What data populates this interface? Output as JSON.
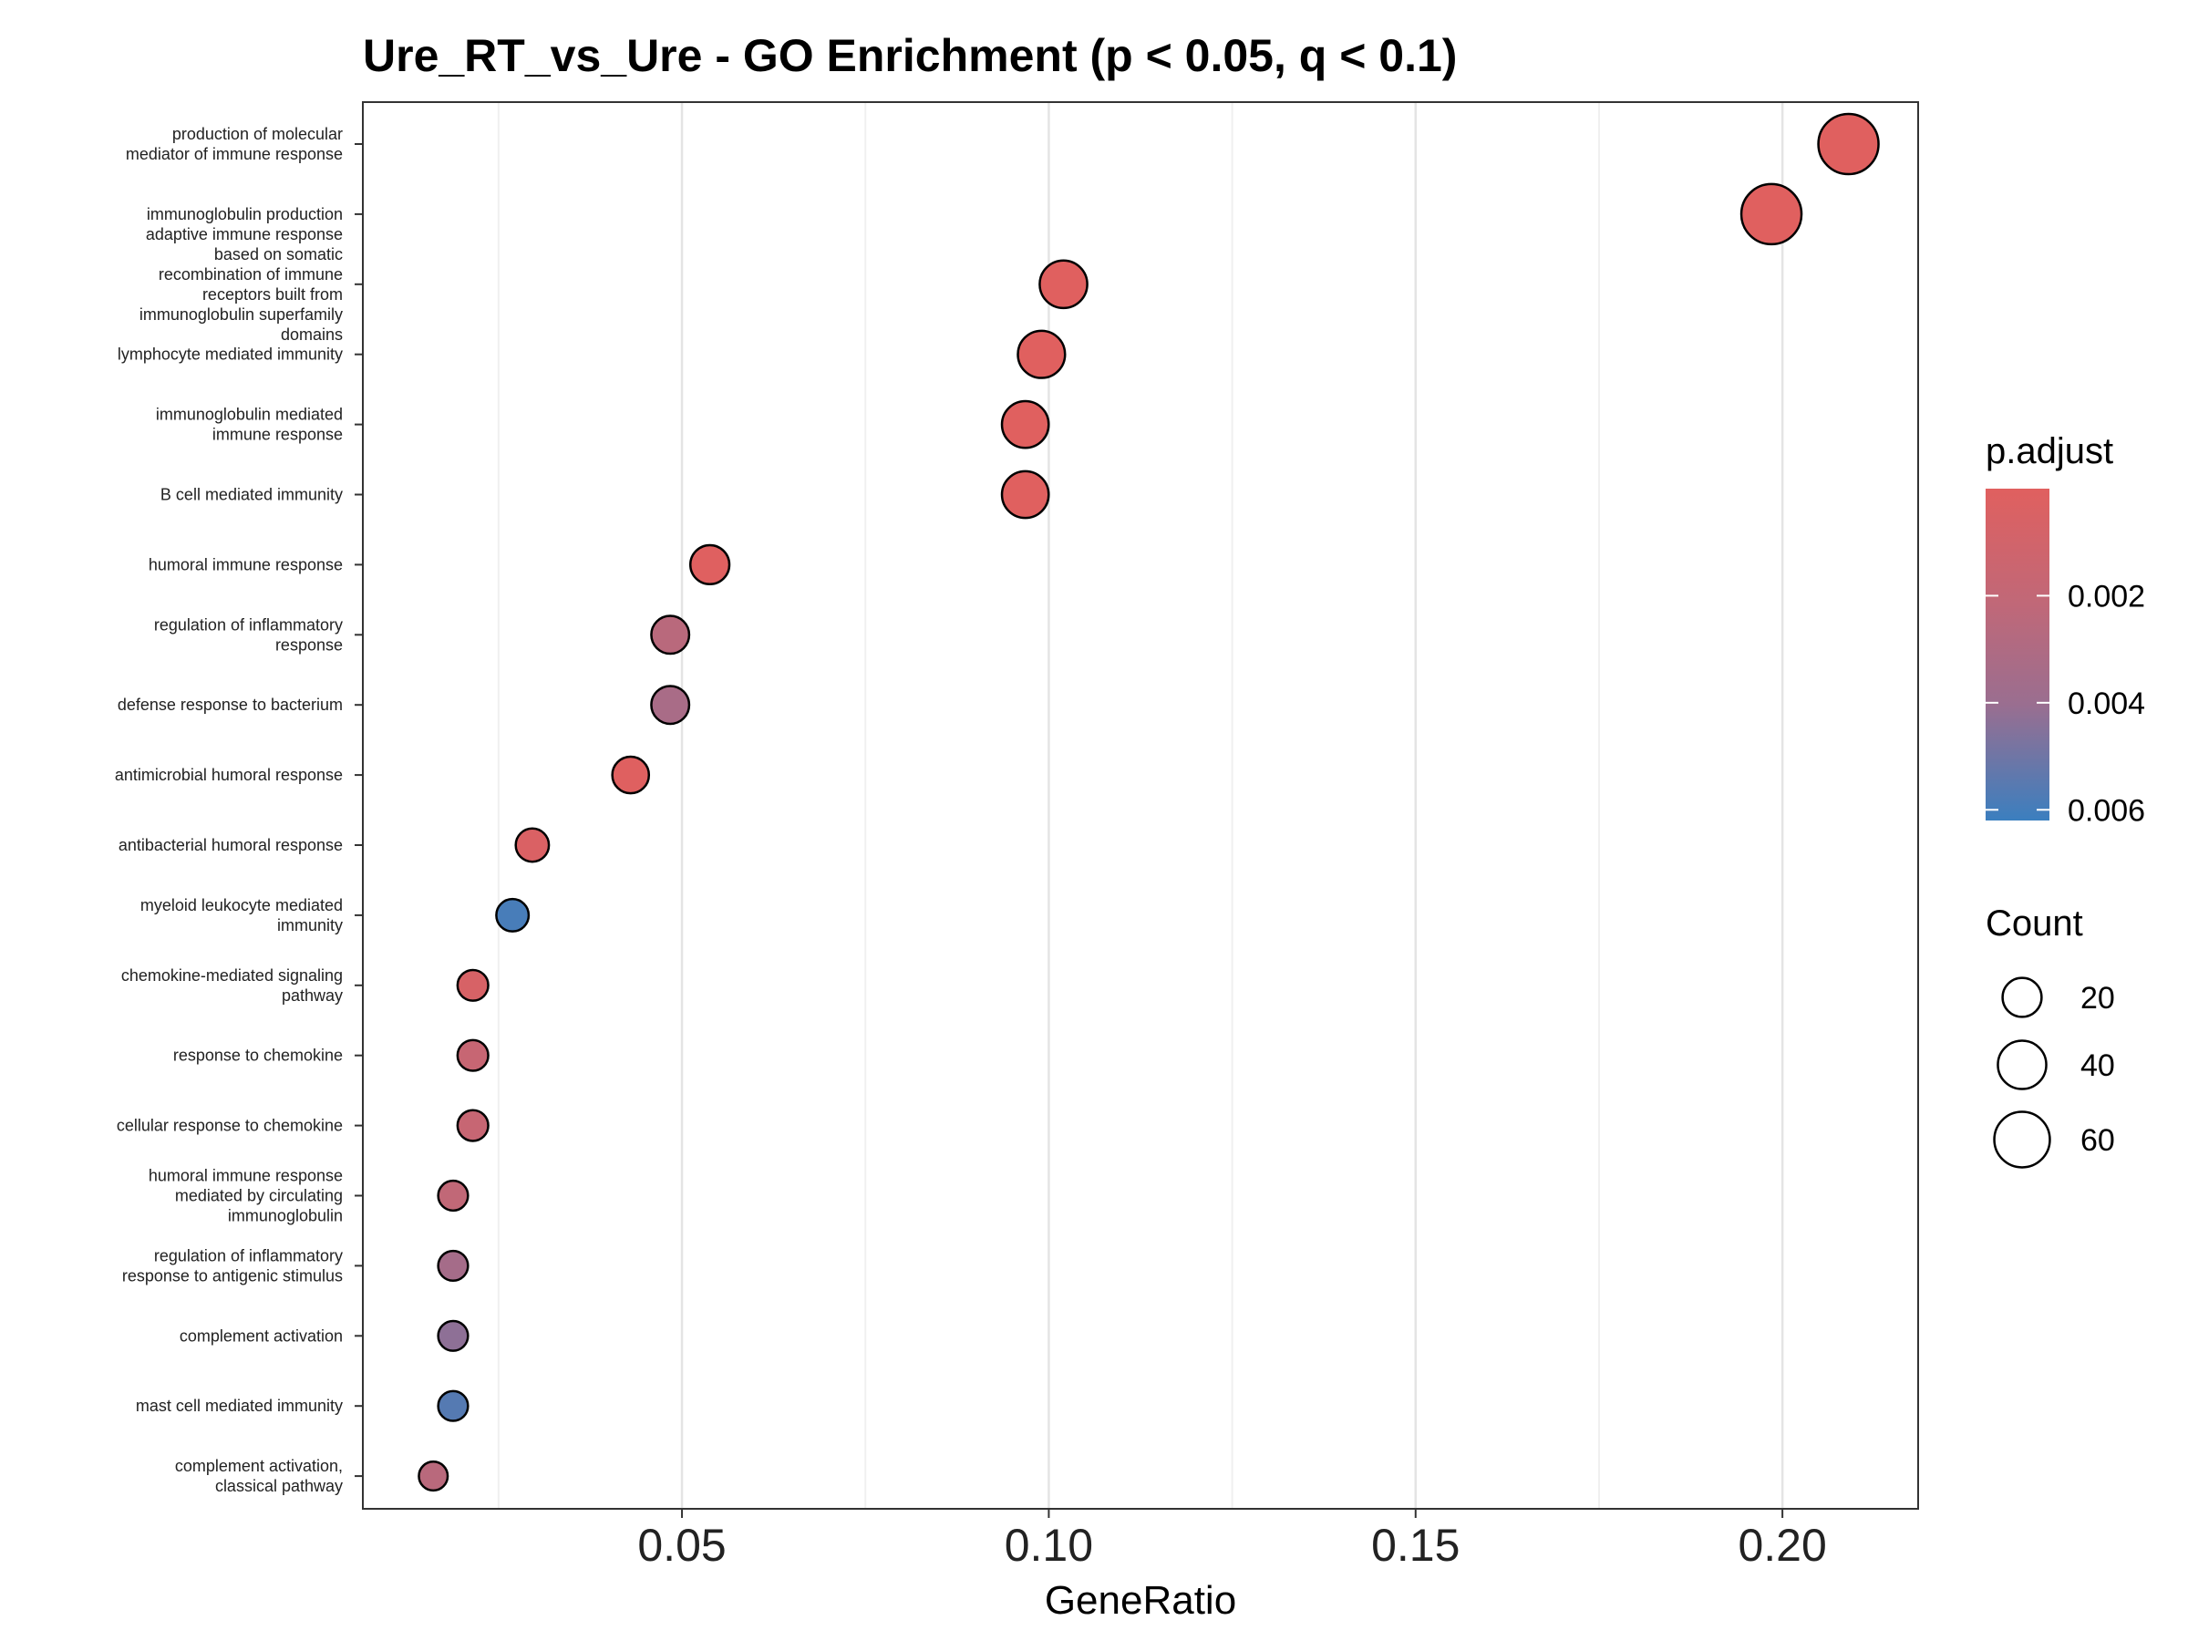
{
  "chart_data": {
    "type": "scatter",
    "title": "Ure_RT_vs_Ure - GO Enrichment (p < 0.05, q < 0.1)",
    "xlabel": "GeneRatio",
    "ylabel": "",
    "xlim": [
      0.0065,
      0.2185
    ],
    "xticks": [
      "0.05",
      "0.10",
      "0.15",
      "0.20"
    ],
    "xtick_values": [
      0.05,
      0.1,
      0.15,
      0.2
    ],
    "grid": true,
    "points": [
      {
        "term": "production of molecular\nmediator of immune response",
        "gene_ratio": 0.209,
        "count": 75,
        "p_adjust": 0.0
      },
      {
        "term": "immunoglobulin production",
        "gene_ratio": 0.1985,
        "count": 75,
        "p_adjust": 0.0
      },
      {
        "term": "adaptive immune response\nbased on somatic\nrecombination of immune\nreceptors built from\nimmunoglobulin superfamily\ndomains",
        "gene_ratio": 0.102,
        "count": 38,
        "p_adjust": 0.0
      },
      {
        "term": "lymphocyte mediated immunity",
        "gene_ratio": 0.099,
        "count": 37,
        "p_adjust": 0.0
      },
      {
        "term": "immunoglobulin mediated\nimmune response",
        "gene_ratio": 0.0968,
        "count": 36,
        "p_adjust": 0.0
      },
      {
        "term": "B cell mediated immunity",
        "gene_ratio": 0.0968,
        "count": 36,
        "p_adjust": 0.0
      },
      {
        "term": "humoral immune response",
        "gene_ratio": 0.0538,
        "count": 20,
        "p_adjust": 0.0001
      },
      {
        "term": "regulation of inflammatory\nresponse",
        "gene_ratio": 0.0484,
        "count": 18,
        "p_adjust": 0.0025
      },
      {
        "term": "defense response to bacterium",
        "gene_ratio": 0.0484,
        "count": 18,
        "p_adjust": 0.0033
      },
      {
        "term": "antimicrobial humoral response",
        "gene_ratio": 0.043,
        "count": 16,
        "p_adjust": 0.0001
      },
      {
        "term": "antibacterial humoral response",
        "gene_ratio": 0.0296,
        "count": 11,
        "p_adjust": 0.0004
      },
      {
        "term": "myeloid leukocyte mediated\nimmunity",
        "gene_ratio": 0.0269,
        "count": 10,
        "p_adjust": 0.0059
      },
      {
        "term": "chemokine-mediated signaling\npathway",
        "gene_ratio": 0.0215,
        "count": 8,
        "p_adjust": 0.0006
      },
      {
        "term": "response to chemokine",
        "gene_ratio": 0.0215,
        "count": 8,
        "p_adjust": 0.0017
      },
      {
        "term": "cellular response to chemokine",
        "gene_ratio": 0.0215,
        "count": 8,
        "p_adjust": 0.0017
      },
      {
        "term": "humoral immune response\nmediated by circulating\nimmunoglobulin",
        "gene_ratio": 0.0188,
        "count": 7,
        "p_adjust": 0.0021
      },
      {
        "term": "regulation of inflammatory\nresponse to antigenic stimulus",
        "gene_ratio": 0.0188,
        "count": 7,
        "p_adjust": 0.0035
      },
      {
        "term": "complement activation",
        "gene_ratio": 0.0188,
        "count": 7,
        "p_adjust": 0.0043
      },
      {
        "term": "mast cell mediated immunity",
        "gene_ratio": 0.0188,
        "count": 7,
        "p_adjust": 0.0056
      },
      {
        "term": "complement activation,\nclassical pathway",
        "gene_ratio": 0.0161,
        "count": 6,
        "p_adjust": 0.0025
      }
    ],
    "color_legend": {
      "title": "p.adjust",
      "labels": [
        "0.002",
        "0.004",
        "0.006"
      ],
      "values": [
        0.002,
        0.004,
        0.006
      ],
      "range": [
        0.0,
        0.0062
      ],
      "low_color": "#e0605f",
      "high_color": "#3b7fbf"
    },
    "size_legend": {
      "title": "Count",
      "labels": [
        "20",
        "40",
        "60"
      ],
      "values": [
        20,
        40,
        60
      ]
    },
    "legend_position": "right"
  }
}
